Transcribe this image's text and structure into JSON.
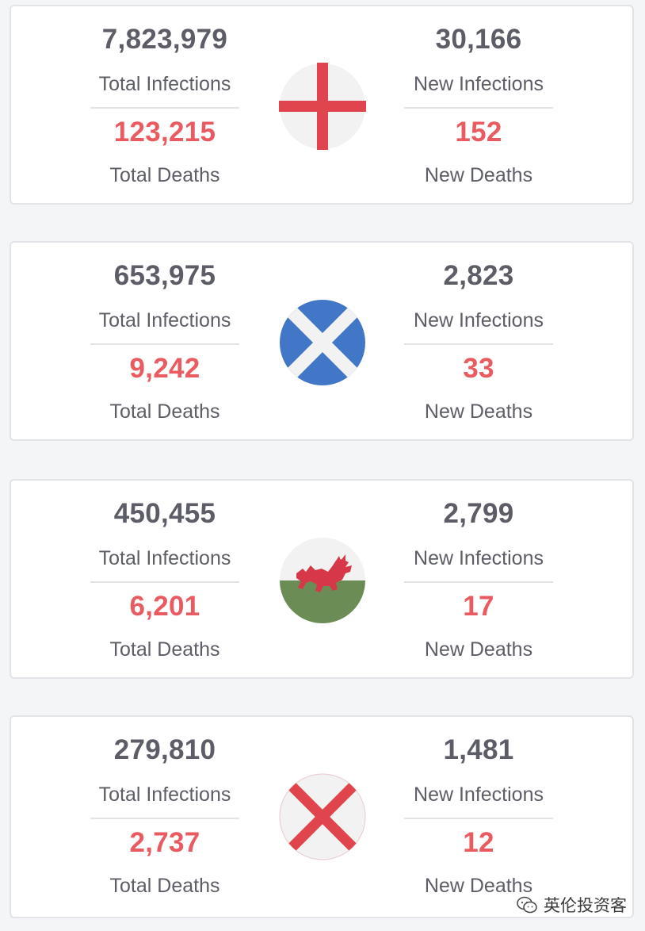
{
  "labels": {
    "total_infections": "Total Infections",
    "new_infections": "New Infections",
    "total_deaths": "Total Deaths",
    "new_deaths": "New Deaths"
  },
  "colors": {
    "number_gray": "#5c5d66",
    "death_red": "#ea5b61",
    "england_red": "#e0444c",
    "scotland_blue": "#4177c6",
    "wales_green": "#6b8c55",
    "wales_dragon": "#d6384a",
    "flag_white": "#f2f2f2"
  },
  "cards": [
    {
      "flag_icon": "england-flag-icon",
      "total_infections": "7,823,979",
      "new_infections": "30,166",
      "total_deaths": "123,215",
      "new_deaths": "152"
    },
    {
      "flag_icon": "scotland-flag-icon",
      "total_infections": "653,975",
      "new_infections": "2,823",
      "total_deaths": "9,242",
      "new_deaths": "33"
    },
    {
      "flag_icon": "wales-flag-icon",
      "total_infections": "450,455",
      "new_infections": "2,799",
      "total_deaths": "6,201",
      "new_deaths": "17"
    },
    {
      "flag_icon": "northern-ireland-flag-icon",
      "total_infections": "279,810",
      "new_infections": "1,481",
      "total_deaths": "2,737",
      "new_deaths": "12"
    }
  ],
  "watermark": {
    "text": "英伦投资客",
    "icon": "wechat-icon"
  }
}
